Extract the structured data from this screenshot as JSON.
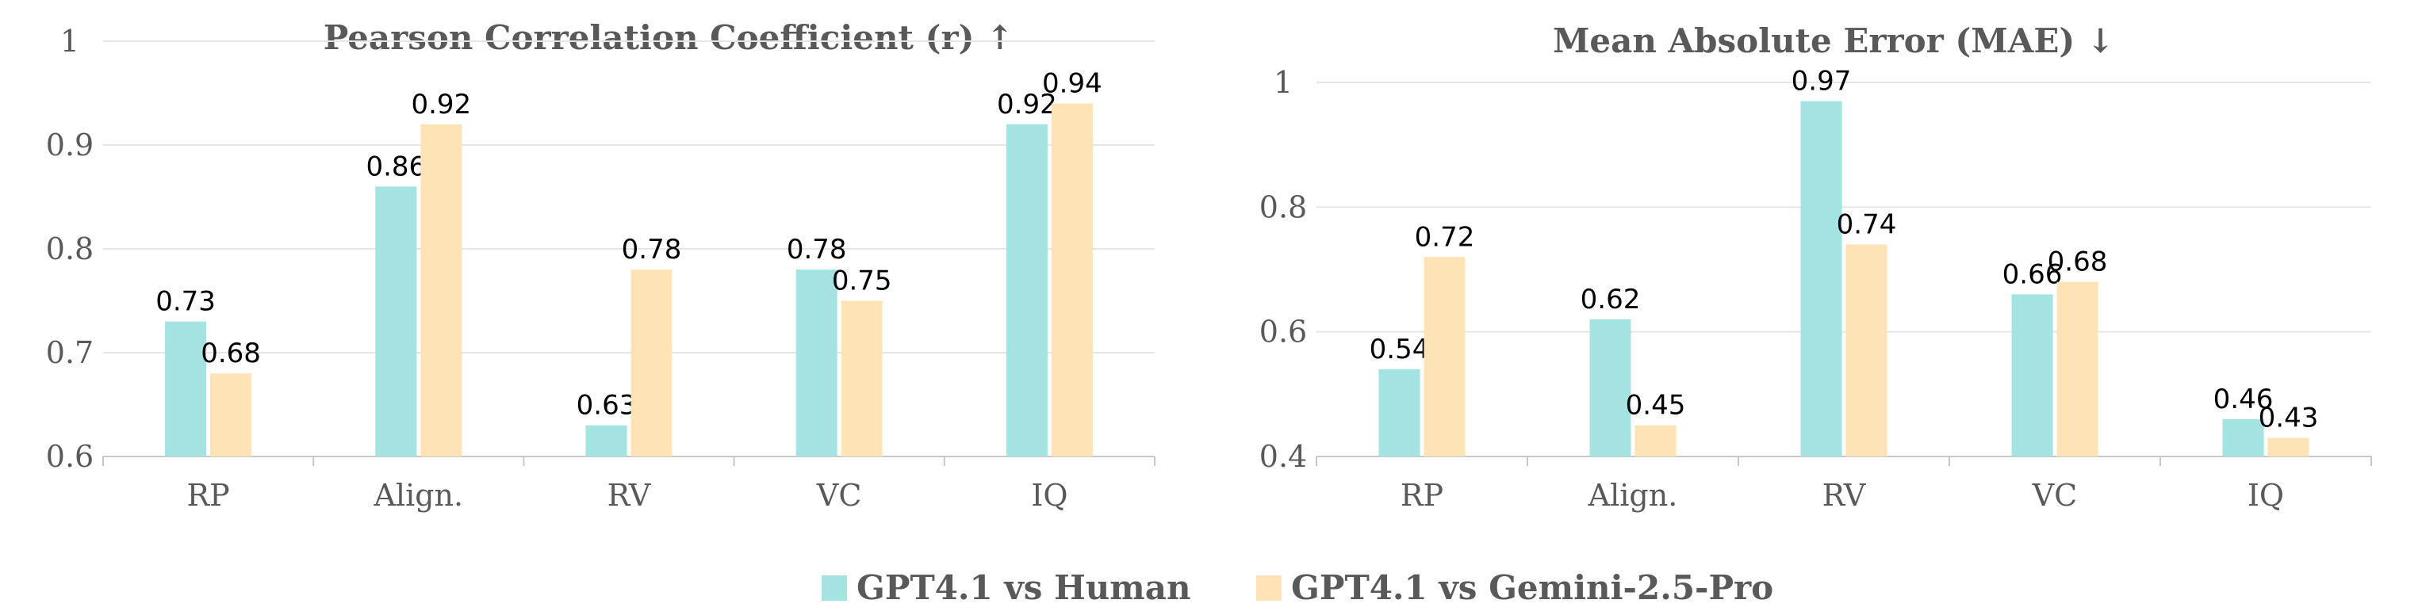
{
  "colors": {
    "series1": "#a3e4e2",
    "series2": "#fde3b5",
    "text": "#595959"
  },
  "legend": {
    "items": [
      {
        "label": "GPT4.1 vs Human",
        "color": "#a3e4e2"
      },
      {
        "label": "GPT4.1 vs Gemini-2.5-Pro",
        "color": "#fde3b5"
      }
    ]
  },
  "chart_data": [
    {
      "type": "bar",
      "title": "Pearson Correlation Coefficient (r) ↑",
      "categories": [
        "RP",
        "Align.",
        "RV",
        "VC",
        "IQ"
      ],
      "series": [
        {
          "name": "GPT4.1 vs Human",
          "values": [
            0.73,
            0.86,
            0.63,
            0.78,
            0.92
          ]
        },
        {
          "name": "GPT4.1 vs Gemini-2.5-Pro",
          "values": [
            0.68,
            0.92,
            0.78,
            0.75,
            0.94
          ]
        }
      ],
      "ylim": [
        0.6,
        1.0
      ],
      "yticks": [
        0.6,
        0.7,
        0.8,
        0.9,
        1.0
      ],
      "ytick_labels": [
        "0.6",
        "0.7",
        "0.8",
        "0.9",
        "1"
      ],
      "xlabel": "",
      "ylabel": "",
      "grid": true
    },
    {
      "type": "bar",
      "title": "Mean Absolute Error (MAE) ↓",
      "categories": [
        "RP",
        "Align.",
        "RV",
        "VC",
        "IQ"
      ],
      "series": [
        {
          "name": "GPT4.1 vs Human",
          "values": [
            0.54,
            0.62,
            0.97,
            0.66,
            0.46
          ]
        },
        {
          "name": "GPT4.1 vs Gemini-2.5-Pro",
          "values": [
            0.72,
            0.45,
            0.74,
            0.68,
            0.43
          ]
        }
      ],
      "ylim": [
        0.4,
        1.0
      ],
      "yticks": [
        0.4,
        0.6,
        0.8,
        1.0
      ],
      "ytick_labels": [
        "0.4",
        "0.6",
        "0.8",
        "1"
      ],
      "xlabel": "",
      "ylabel": "",
      "grid": true
    }
  ]
}
